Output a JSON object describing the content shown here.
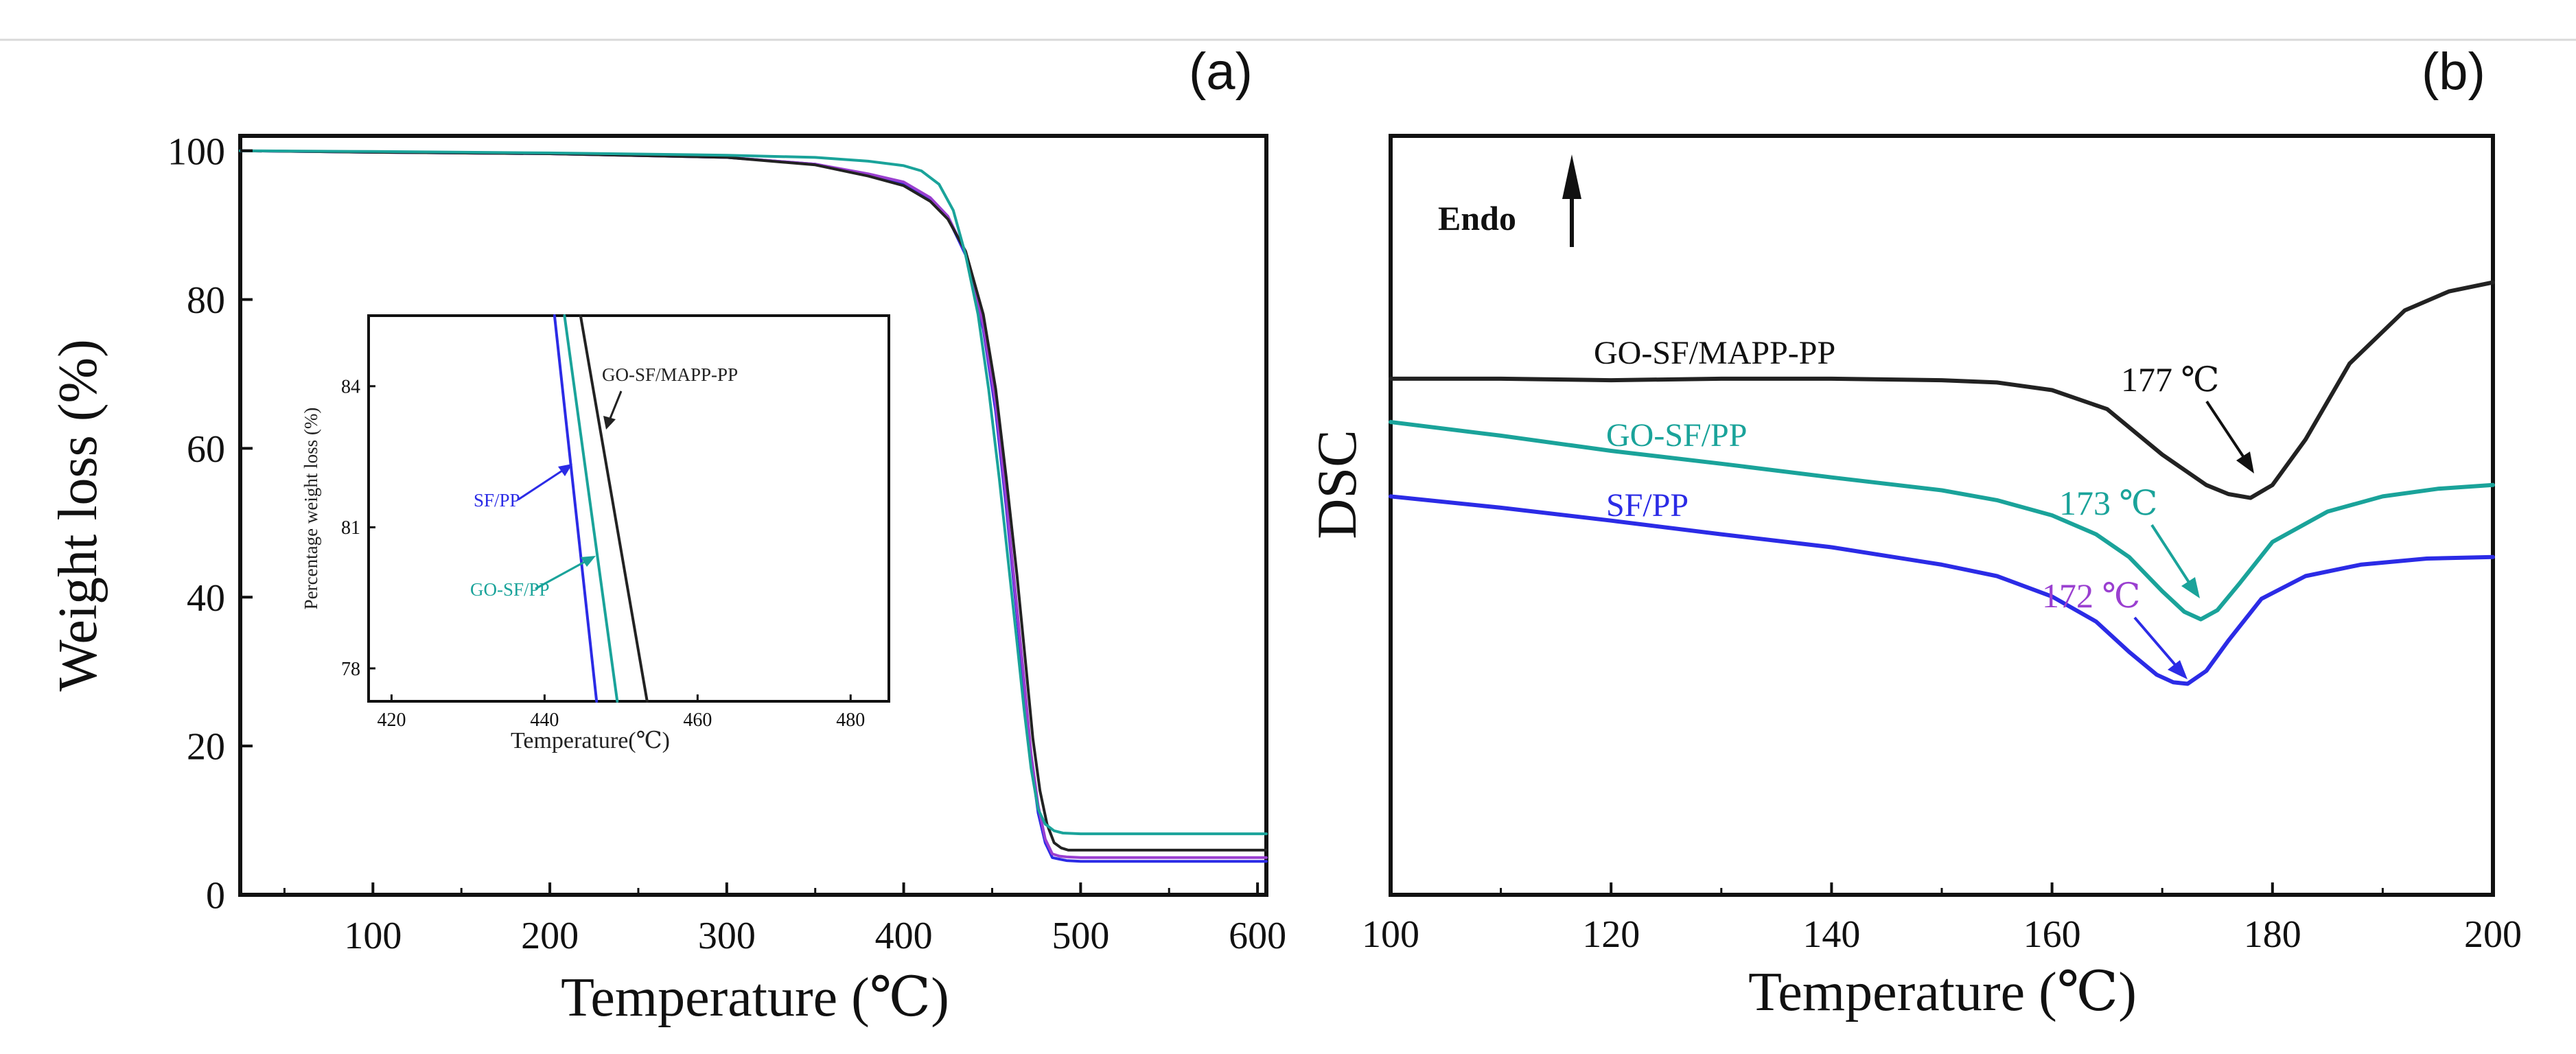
{
  "figure": {
    "panel_a_label": "(a)",
    "panel_b_label": "(b)"
  },
  "colors": {
    "black": "#222222",
    "teal": "#1aa39a",
    "blue": "#2b2be6",
    "purple": "#9a3fd0",
    "axis": "#111111"
  },
  "chart_data": [
    {
      "id": "tga",
      "type": "line",
      "title": "",
      "xlabel": "Temperature (℃)",
      "ylabel": "Weight loss (%)",
      "xlim": [
        25,
        605
      ],
      "ylim": [
        0,
        102
      ],
      "xticks": [
        100,
        200,
        300,
        400,
        500,
        600
      ],
      "yticks": [
        0,
        20,
        40,
        60,
        80,
        100
      ],
      "grid": false,
      "series": [
        {
          "name": "SF/PP",
          "color": "blue",
          "x": [
            25,
            100,
            200,
            300,
            350,
            380,
            400,
            415,
            425,
            435,
            445,
            452,
            458,
            463,
            468,
            472,
            476,
            480,
            484,
            488,
            492,
            500,
            550,
            605
          ],
          "y": [
            100,
            99.8,
            99.6,
            99.1,
            98.2,
            96.8,
            95.6,
            93.5,
            91,
            86,
            76,
            65,
            52,
            40,
            28,
            18,
            11,
            7,
            5,
            4.8,
            4.6,
            4.5,
            4.5,
            4.5
          ]
        },
        {
          "name": "SF/PP (purple)",
          "color": "purple",
          "x": [
            25,
            100,
            200,
            300,
            350,
            380,
            400,
            415,
            425,
            435,
            445,
            452,
            458,
            463,
            468,
            472,
            476,
            480,
            484,
            488,
            492,
            500,
            550,
            605
          ],
          "y": [
            100,
            99.8,
            99.6,
            99.1,
            98.2,
            96.9,
            95.8,
            93.7,
            91.2,
            86.3,
            76.5,
            66,
            53,
            41,
            29,
            19,
            12,
            7.5,
            5.5,
            5.2,
            5.1,
            5,
            5,
            5
          ]
        },
        {
          "name": "GO-SF/MAPP-PP",
          "color": "black",
          "x": [
            25,
            100,
            200,
            300,
            350,
            380,
            400,
            415,
            425,
            435,
            445,
            452,
            458,
            464,
            469,
            473,
            477,
            481,
            485,
            489,
            493,
            500,
            550,
            605
          ],
          "y": [
            100,
            99.8,
            99.6,
            99.1,
            98.1,
            96.6,
            95.3,
            93.2,
            90.8,
            86.5,
            78,
            68,
            56,
            43,
            31,
            21,
            14,
            9.5,
            7,
            6.3,
            6,
            6,
            6,
            6
          ]
        },
        {
          "name": "GO-SF/PP",
          "color": "teal",
          "x": [
            25,
            100,
            200,
            300,
            350,
            380,
            400,
            410,
            420,
            428,
            435,
            442,
            448,
            454,
            459,
            464,
            468,
            472,
            476,
            480,
            485,
            490,
            500,
            550,
            605
          ],
          "y": [
            100,
            99.9,
            99.7,
            99.4,
            99.1,
            98.6,
            98,
            97.3,
            95.5,
            92,
            86,
            78,
            68,
            56,
            45,
            34,
            25,
            17,
            11.5,
            9.5,
            8.6,
            8.3,
            8.2,
            8.2,
            8.2
          ]
        }
      ],
      "inset": {
        "xlabel": "Temperature(℃)",
        "ylabel": "Percentage weight loss (%)",
        "xlim": [
          417,
          485
        ],
        "ylim": [
          77.3,
          85.5
        ],
        "xticks": [
          420,
          440,
          460,
          480
        ],
        "yticks": [
          78,
          81,
          84
        ],
        "series": [
          {
            "name": "SF/PP",
            "color": "blue",
            "x": [
              441.3,
              446.8
            ],
            "y": [
              85.5,
              77.3
            ]
          },
          {
            "name": "GO-SF/PP",
            "color": "teal",
            "x": [
              442.6,
              449.5
            ],
            "y": [
              85.5,
              77.3
            ]
          },
          {
            "name": "GO-SF/MAPP-PP",
            "color": "black",
            "x": [
              444.7,
              453.4
            ],
            "y": [
              85.5,
              77.3
            ]
          }
        ],
        "annotations": [
          {
            "text": "GO-SF/MAPP-PP",
            "color": "black"
          },
          {
            "text": "SF/PP",
            "color": "blue"
          },
          {
            "text": "GO-SF/PP",
            "color": "teal"
          }
        ]
      }
    },
    {
      "id": "dsc",
      "type": "line",
      "title": "",
      "xlabel": "Temperature (℃)",
      "ylabel": "DSC",
      "xlim": [
        100,
        200
      ],
      "ylim": [
        0,
        100
      ],
      "xticks": [
        100,
        120,
        140,
        160,
        180,
        200
      ],
      "yticks": [],
      "grid": false,
      "endo_label": "Endo",
      "series": [
        {
          "name": "GO-SF/MAPP-PP",
          "color": "black",
          "x": [
            100,
            110,
            120,
            130,
            140,
            150,
            155,
            160,
            165,
            170,
            174,
            176,
            178,
            180,
            183,
            187,
            192,
            196,
            200
          ],
          "y": [
            68,
            68,
            67.8,
            68,
            68,
            67.8,
            67.5,
            66.5,
            64,
            58,
            54,
            52.8,
            52.3,
            54,
            60,
            70,
            77,
            79.5,
            80.7
          ]
        },
        {
          "name": "GO-SF/PP",
          "color": "teal",
          "x": [
            100,
            110,
            120,
            130,
            140,
            150,
            155,
            160,
            164,
            167,
            170,
            172,
            173.5,
            175,
            177,
            180,
            185,
            190,
            195,
            200
          ],
          "y": [
            62.3,
            60.5,
            58.5,
            56.8,
            55,
            53.3,
            52,
            50,
            47.5,
            44.5,
            40,
            37.3,
            36.3,
            37.5,
            41,
            46.5,
            50.5,
            52.5,
            53.5,
            54
          ]
        },
        {
          "name": "SF/PP",
          "color": "blue",
          "x": [
            100,
            110,
            120,
            130,
            140,
            150,
            155,
            160,
            164,
            167,
            169.5,
            171,
            172.3,
            174,
            176,
            179,
            183,
            188,
            194,
            200
          ],
          "y": [
            52.5,
            51,
            49.3,
            47.5,
            45.8,
            43.5,
            42,
            39.3,
            36,
            32,
            29,
            28,
            27.8,
            29.5,
            33.5,
            39,
            42,
            43.5,
            44.3,
            44.5
          ]
        }
      ],
      "annotations": [
        {
          "text": "GO-SF/MAPP-PP",
          "color": "black"
        },
        {
          "text": "GO-SF/PP",
          "color": "teal"
        },
        {
          "text": "SF/PP",
          "color": "blue"
        },
        {
          "text": "177 ℃",
          "color": "black",
          "point": [
            178,
            52.3
          ]
        },
        {
          "text": "173 ℃",
          "color": "teal",
          "point": [
            173.5,
            36.3
          ]
        },
        {
          "text": "172 ℃",
          "color": "purple",
          "point": [
            172.3,
            27.8
          ]
        }
      ]
    }
  ]
}
